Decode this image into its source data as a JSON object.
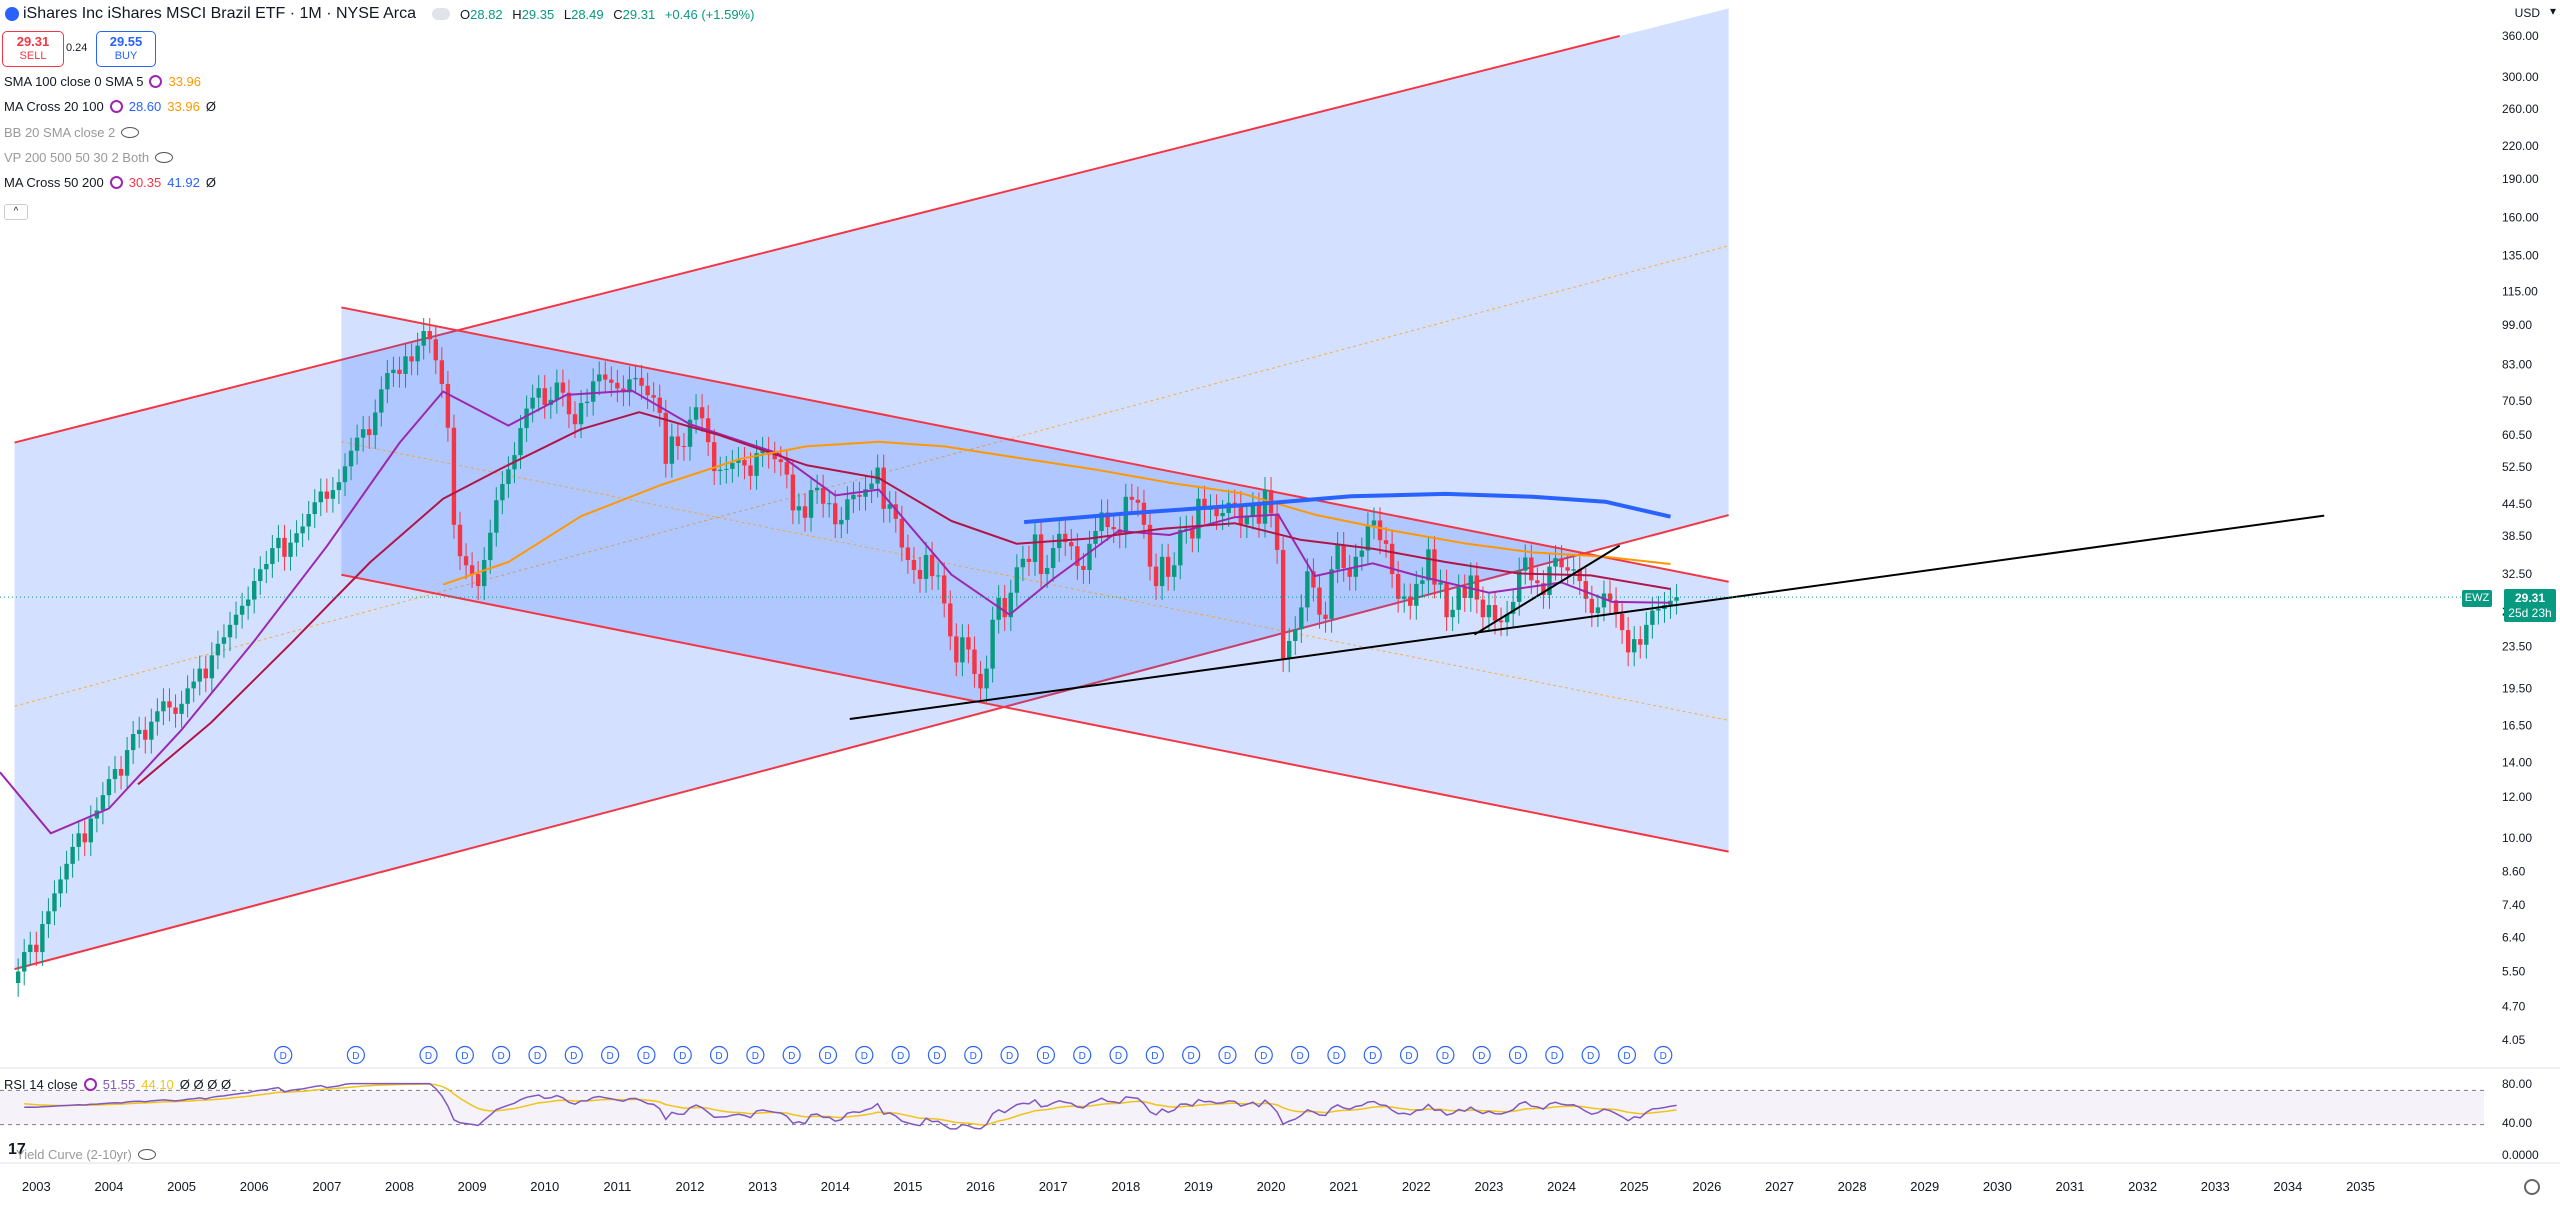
{
  "header": {
    "title": "iShares Inc iShares MSCI Brazil ETF · 1M · NYSE Arca",
    "ohlc": {
      "open_label": "O",
      "open": "28.82",
      "high_label": "H",
      "high": "29.35",
      "low_label": "L",
      "low": "28.49",
      "close_label": "C",
      "close": "29.31",
      "change": "+0.46 (+1.59%)"
    }
  },
  "trade": {
    "sell_price": "29.31",
    "sell_label": "SELL",
    "spread": "0.24",
    "buy_price": "29.55",
    "buy_label": "BUY"
  },
  "indicators": [
    {
      "label": "SMA 100 close 0 SMA 5",
      "v1": "33.96",
      "v1_color": "#ff9800",
      "v2": "",
      "v2_color": "",
      "extra": "",
      "muted": false
    },
    {
      "label": "MA Cross 20 100",
      "v1": "28.60",
      "v1_color": "#2962ff",
      "v2": "33.96",
      "v2_color": "#ff9800",
      "extra": "Ø",
      "muted": false
    },
    {
      "label": "BB 20 SMA close 2",
      "v1": "",
      "v1_color": "",
      "v2": "",
      "v2_color": "",
      "extra": "",
      "muted": true
    },
    {
      "label": "VP 200 500 50 30 2 Both",
      "v1": "",
      "v1_color": "",
      "v2": "",
      "v2_color": "",
      "extra": "",
      "muted": true
    },
    {
      "label": "MA Cross 50 200",
      "v1": "30.35",
      "v1_color": "#f23645",
      "v2": "41.92",
      "v2_color": "#2962ff",
      "extra": "Ø",
      "muted": false
    }
  ],
  "rsi_legend": {
    "label": "RSI 14 close",
    "v1": "51.55",
    "v2": "44.10",
    "extra": "Ø Ø Ø Ø"
  },
  "yield_legend": "Yield Curve (2-10yr)",
  "currency": "USD",
  "symbol_tag": "EWZ",
  "price_tag": {
    "price": "29.31",
    "countdown": "25d 23h"
  },
  "dividend_marker": "D",
  "chart_data": {
    "type": "candlestick",
    "scale": "log",
    "ylim": [
      4.05,
      360
    ],
    "xlim": [
      2002.5,
      2036.7
    ],
    "y_ticks": [
      "360.00",
      "300.00",
      "260.00",
      "220.00",
      "190.00",
      "160.00",
      "135.00",
      "115.00",
      "99.00",
      "83.00",
      "70.50",
      "60.50",
      "52.50",
      "44.50",
      "38.50",
      "32.50",
      "27.50",
      "23.50",
      "19.50",
      "16.50",
      "14.00",
      "12.00",
      "10.00",
      "8.60",
      "7.40",
      "6.40",
      "5.50",
      "4.70",
      "4.05"
    ],
    "x_ticks": [
      "2003",
      "2004",
      "2005",
      "2006",
      "2007",
      "2008",
      "2009",
      "2010",
      "2011",
      "2012",
      "2013",
      "2014",
      "2015",
      "2016",
      "2017",
      "2018",
      "2019",
      "2020",
      "2021",
      "2022",
      "2023",
      "2024",
      "2025",
      "2026",
      "2027",
      "2028",
      "2029",
      "2030",
      "2031",
      "2032",
      "2033",
      "2034",
      "2035"
    ],
    "monthly_closes": {
      "2002": [
        5.5,
        6.0,
        6.2
      ],
      "2003": [
        6.0,
        6.8,
        7.2,
        7.8,
        8.3,
        8.9,
        9.6,
        10.2,
        9.8,
        10.9,
        11.3,
        12.1
      ],
      "2004": [
        13.0,
        13.6,
        13.2,
        14.8,
        15.9,
        16.2,
        15.5,
        16.8,
        17.6,
        18.4,
        17.9,
        17.4
      ],
      "2005": [
        18.2,
        19.5,
        20.1,
        21.3,
        20.4,
        22.6,
        23.8,
        24.5,
        25.9,
        27.1,
        28.2,
        29.0
      ],
      "2006": [
        31.5,
        33.2,
        34.0,
        36.5,
        38.2,
        35.1,
        37.4,
        39.0,
        40.2,
        42.5,
        44.8,
        47.0
      ],
      "2007": [
        45.5,
        47.3,
        49.0,
        52.6,
        56.4,
        59.8,
        62.1,
        60.5,
        66.9,
        74.2,
        79.8,
        81.0
      ],
      "2008": [
        79.5,
        86.0,
        84.1,
        90.2,
        96.3,
        92.8,
        84.5,
        76.0,
        62.5,
        40.5,
        35.2,
        33.8
      ],
      "2009": [
        32.5,
        30.8,
        34.6,
        39.1,
        45.2,
        48.6,
        51.9,
        55.3,
        62.4,
        68.1,
        71.5,
        74.6
      ],
      "2010": [
        69.2,
        70.8,
        76.5,
        73.1,
        66.4,
        63.5,
        69.8,
        70.2,
        76.9,
        79.3,
        77.5,
        76.4
      ],
      "2011": [
        74.5,
        73.2,
        77.6,
        78.1,
        75.4,
        72.3,
        71.5,
        66.8,
        53.2,
        60.1,
        57.6,
        57.4
      ],
      "2012": [
        64.8,
        68.5,
        65.2,
        58.6,
        51.5,
        51.8,
        52.0,
        53.4,
        54.1,
        52.8,
        50.4,
        55.8
      ],
      "2013": [
        56.6,
        55.4,
        54.3,
        53.6,
        50.7,
        43.2,
        44.0,
        41.8,
        47.3,
        47.8,
        44.5,
        44.6
      ],
      "2014": [
        40.6,
        41.4,
        45.4,
        46.3,
        45.9,
        47.5,
        48.7,
        52.3,
        43.5,
        44.4,
        41.6,
        36.6
      ],
      "2015": [
        34.6,
        33.1,
        31.8,
        35.4,
        32.2,
        32.3,
        28.5,
        24.6,
        21.9,
        24.5,
        23.2,
        20.8
      ],
      "2016": [
        19.5,
        21.3,
        26.5,
        29.2,
        26.8,
        29.9,
        33.5,
        34.8,
        34.3,
        38.8,
        32.5,
        33.4
      ],
      "2017": [
        36.5,
        38.9,
        37.5,
        36.8,
        33.7,
        33.1,
        37.2,
        39.4,
        42.8,
        40.1,
        39.7,
        38.8
      ],
      "2018": [
        45.9,
        45.3,
        44.7,
        40.5,
        33.6,
        30.8,
        35.1,
        32.1,
        33.8,
        39.6,
        39.8,
        38.1
      ],
      "2019": [
        45.5,
        43.3,
        43.8,
        42.1,
        42.7,
        44.7,
        44.4,
        40.6,
        42.2,
        44.2,
        40.7,
        47.3
      ],
      "2020": [
        42.6,
        36.2,
        22.3,
        24.1,
        25.4,
        28.0,
        32.9,
        30.6,
        27.1,
        26.6,
        33.2,
        37.0
      ],
      "2021": [
        33.4,
        32.1,
        35.1,
        36.1,
        40.4,
        41.3,
        37.8,
        37.2,
        32.5,
        29.1,
        29.4,
        28.2
      ],
      "2022": [
        31.1,
        31.6,
        36.3,
        31.0,
        31.3,
        26.8,
        27.7,
        30.6,
        29.2,
        32.3,
        29.0,
        26.8
      ],
      "2023": [
        28.3,
        26.4,
        26.2,
        27.2,
        28.7,
        33.0,
        35.0,
        31.6,
        31.2,
        29.6,
        33.6,
        34.9
      ],
      "2024": [
        33.5,
        33.0,
        33.2,
        31.5,
        29.1,
        27.3,
        28.0,
        29.8,
        28.9,
        27.2,
        25.3,
        22.9
      ],
      "2025": [
        24.3,
        23.7,
        25.9,
        27.6,
        27.8,
        28.3,
        28.85,
        29.31
      ]
    },
    "lines": [
      {
        "name": "",
        "color": "#9c27b0",
        "points": [
          [
            2002.5,
            13.4
          ],
          [
            2003.2,
            10.2
          ],
          [
            2004.0,
            11.4
          ],
          [
            2005.0,
            16.2
          ],
          [
            2006.0,
            24.1
          ],
          [
            2007.0,
            36.8
          ],
          [
            2008.0,
            58.4
          ],
          [
            2008.6,
            73.5
          ],
          [
            2009.5,
            63.1
          ],
          [
            2010.3,
            72.4
          ],
          [
            2011.2,
            73.8
          ],
          [
            2012.0,
            63.5
          ],
          [
            2013.2,
            55.8
          ],
          [
            2014.0,
            46.2
          ],
          [
            2014.6,
            47.4
          ],
          [
            2015.6,
            32.4
          ],
          [
            2016.4,
            27.1
          ],
          [
            2017.0,
            31.8
          ],
          [
            2017.9,
            39.4
          ],
          [
            2018.6,
            38.7
          ],
          [
            2019.5,
            41.9
          ],
          [
            2020.1,
            42.4
          ],
          [
            2020.6,
            32.2
          ],
          [
            2021.4,
            34.1
          ],
          [
            2022.0,
            32.3
          ],
          [
            2023.0,
            29.9
          ],
          [
            2024.0,
            31.3
          ],
          [
            2024.7,
            28.7
          ],
          [
            2025.5,
            28.6
          ]
        ]
      },
      {
        "name": "",
        "color": "#b0154a",
        "points": [
          [
            2004.4,
            12.7
          ],
          [
            2005.4,
            16.7
          ],
          [
            2006.5,
            23.8
          ],
          [
            2007.6,
            34.3
          ],
          [
            2008.6,
            45.5
          ],
          [
            2009.4,
            52.1
          ],
          [
            2010.5,
            62.1
          ],
          [
            2011.3,
            67.0
          ],
          [
            2012.4,
            60.5
          ],
          [
            2013.6,
            52.9
          ],
          [
            2014.6,
            49.9
          ],
          [
            2015.6,
            41.2
          ],
          [
            2016.5,
            37.2
          ],
          [
            2017.5,
            38.1
          ],
          [
            2018.5,
            39.8
          ],
          [
            2019.5,
            40.8
          ],
          [
            2020.4,
            37.9
          ],
          [
            2021.4,
            36.4
          ],
          [
            2022.4,
            34.3
          ],
          [
            2023.4,
            32.6
          ],
          [
            2024.4,
            32.3
          ],
          [
            2025.5,
            30.4
          ]
        ]
      },
      {
        "name": "",
        "color": "#ff9800",
        "points": [
          [
            2008.6,
            31.0
          ],
          [
            2009.5,
            34.3
          ],
          [
            2010.5,
            42.1
          ],
          [
            2011.6,
            48.4
          ],
          [
            2012.7,
            54.4
          ],
          [
            2013.6,
            57.5
          ],
          [
            2014.6,
            58.7
          ],
          [
            2015.5,
            57.5
          ],
          [
            2016.6,
            54.4
          ],
          [
            2017.6,
            51.8
          ],
          [
            2018.6,
            48.9
          ],
          [
            2019.6,
            46.6
          ],
          [
            2020.6,
            42.4
          ],
          [
            2021.7,
            39.4
          ],
          [
            2022.7,
            37.2
          ],
          [
            2023.6,
            35.8
          ],
          [
            2024.6,
            35.1
          ],
          [
            2025.5,
            34.0
          ]
        ]
      },
      {
        "name": "",
        "color": "#2962ff",
        "points": [
          [
            2016.6,
            41.0
          ],
          [
            2018.0,
            42.6
          ],
          [
            2019.6,
            44.2
          ],
          [
            2021.1,
            46.0
          ],
          [
            2022.4,
            46.5
          ],
          [
            2023.6,
            45.9
          ],
          [
            2024.6,
            44.9
          ],
          [
            2025.5,
            42.0
          ]
        ]
      }
    ],
    "trendlines": [
      {
        "color": "#000000",
        "from": [
          2014.2,
          17.0
        ],
        "to": [
          2034.5,
          42.2
        ]
      },
      {
        "color": "#000000",
        "from": [
          2022.8,
          24.8
        ],
        "to": [
          2024.8,
          36.9
        ]
      }
    ],
    "channels": [
      {
        "upper": [
          [
            2002.7,
            58.5
          ],
          [
            2024.8,
            360
          ]
        ],
        "lower": [
          [
            2002.7,
            5.56
          ],
          [
            2026.3,
            42.3
          ]
        ],
        "mid": [
          [
            2002.7,
            18.0
          ],
          [
            2026.3,
            141
          ]
        ]
      },
      {
        "upper": [
          [
            2007.2,
            107
          ],
          [
            2026.3,
            31.4
          ]
        ],
        "lower": [
          [
            2007.2,
            32.4
          ],
          [
            2026.3,
            9.4
          ]
        ],
        "mid": [
          [
            2007.2,
            58.7
          ],
          [
            2026.3,
            16.9
          ]
        ]
      }
    ],
    "dividend_years": [
      2006.4,
      2007.4,
      2008.4,
      2008.9,
      2009.4,
      2009.9,
      2010.4,
      2010.9,
      2011.4,
      2011.9,
      2012.4,
      2012.9,
      2013.4,
      2013.9,
      2014.4,
      2014.9,
      2015.4,
      2015.9,
      2016.4,
      2016.9,
      2017.4,
      2017.9,
      2018.4,
      2018.9,
      2019.4,
      2019.9,
      2020.4,
      2020.9,
      2021.4,
      2021.9,
      2022.4,
      2022.9,
      2023.4,
      2023.9,
      2024.4,
      2024.9,
      2025.4
    ],
    "rsi": {
      "ylim": [
        0,
        100
      ],
      "y_ticks": [
        "80.00",
        "40.00",
        "0.0000"
      ],
      "upper": 70,
      "lower": 30,
      "rsi_value": 51.55,
      "signal_value": 44.1
    }
  }
}
